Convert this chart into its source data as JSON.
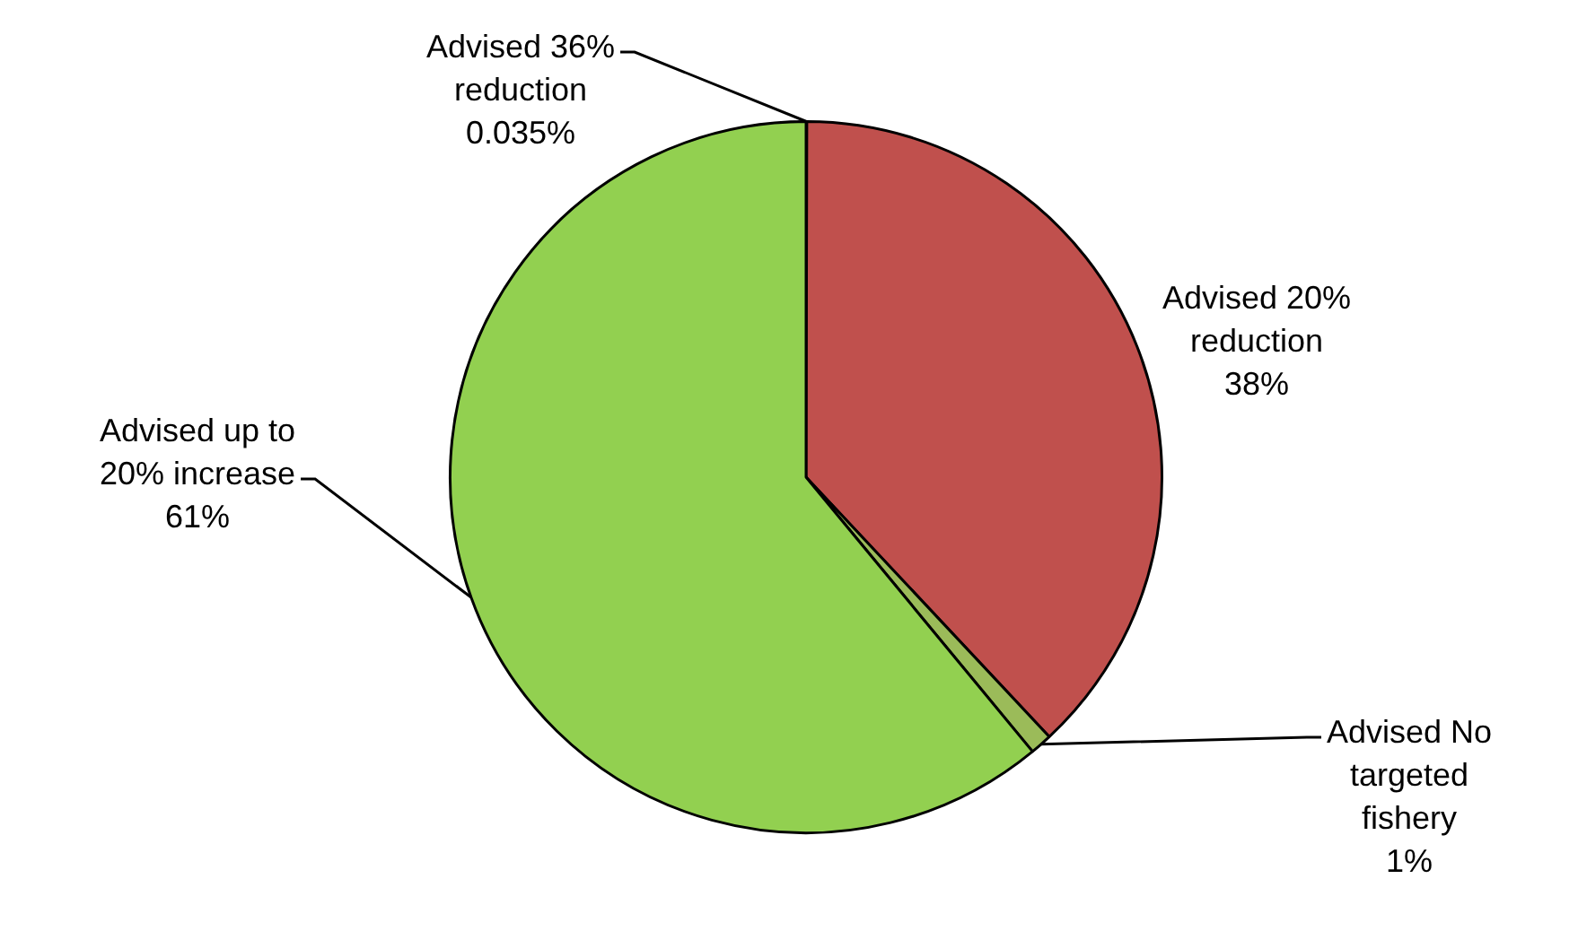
{
  "chart_data": {
    "type": "pie",
    "categories": [
      "Advised 36% reduction",
      "Advised 20% reduction",
      "Advised No targeted fishery",
      "Advised up to 20% increase"
    ],
    "values": [
      0.035,
      38,
      1,
      61
    ],
    "colors": [
      "#4f81bd",
      "#c0504d",
      "#9bbb59",
      "#92d050"
    ],
    "value_labels": [
      "0.035%",
      "38%",
      "1%",
      "61%"
    ]
  }
}
